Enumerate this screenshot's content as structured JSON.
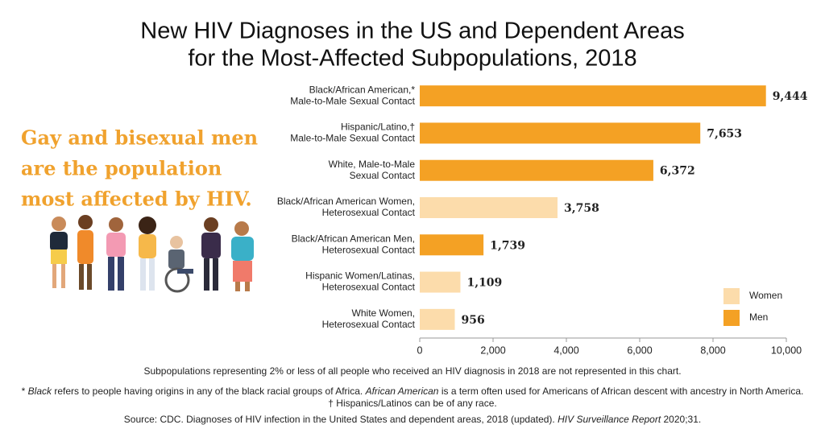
{
  "chart_data": {
    "type": "bar",
    "orientation": "horizontal",
    "title": [
      "New HIV Diagnoses in the US and Dependent Areas",
      "for the Most-Affected Subpopulations, 2018"
    ],
    "callout": [
      "Gay and bisexual men",
      "are the population",
      "most affected by HIV."
    ],
    "categories": [
      [
        "Black/African American,*",
        "Male-to-Male Sexual Contact"
      ],
      [
        "Hispanic/Latino,†",
        "Male-to-Male Sexual Contact"
      ],
      [
        "White, Male-to-Male",
        "Sexual Contact"
      ],
      [
        "Black/African American Women,",
        "Heterosexual Contact"
      ],
      [
        "Black/African American Men,",
        "Heterosexual Contact"
      ],
      [
        "Hispanic Women/Latinas,",
        "Heterosexual Contact"
      ],
      [
        "White Women,",
        "Heterosexual Contact"
      ]
    ],
    "series": [
      {
        "name": "Women",
        "color": "#fcdcab",
        "label_color": "#f0a22e",
        "values": [
          null,
          null,
          null,
          3758,
          null,
          1109,
          956
        ],
        "value_labels": [
          null,
          null,
          null,
          "3,758",
          null,
          "1,109",
          "956"
        ]
      },
      {
        "name": "Men",
        "color": "#f4a124",
        "label_color": "#a8731b",
        "values": [
          9444,
          7653,
          6372,
          null,
          1739,
          null,
          null
        ],
        "value_labels": [
          "9,444",
          "7,653",
          "6,372",
          null,
          "1,739",
          null,
          null
        ]
      }
    ],
    "xlim": [
      0,
      10000
    ],
    "xticks": [
      0,
      {
        "value": 2000,
        "label": "2,000"
      },
      {
        "value": 4000,
        "label": "4,000"
      },
      {
        "value": 6000,
        "label": "6,000"
      },
      {
        "value": 8000,
        "label": "8,000"
      },
      {
        "value": 10000,
        "label": "10,000"
      }
    ],
    "note": "Subpopulations representing 2% or less of all people who received an HIV diagnosis in 2018 are not represented in this chart.",
    "footnote": [
      "* ",
      "Black",
      " refers to people having origins in any of the black racial groups of Africa. ",
      "African American",
      " is a term often used for Americans of African descent with ancestry in North America."
    ],
    "footnote2": "† Hispanics/Latinos can be of any race.",
    "source": [
      "Source: CDC. Diagnoses of HIV infection in the United States and dependent areas, 2018 (updated). ",
      "HIV Surveillance Report",
      " 2020;31."
    ]
  }
}
